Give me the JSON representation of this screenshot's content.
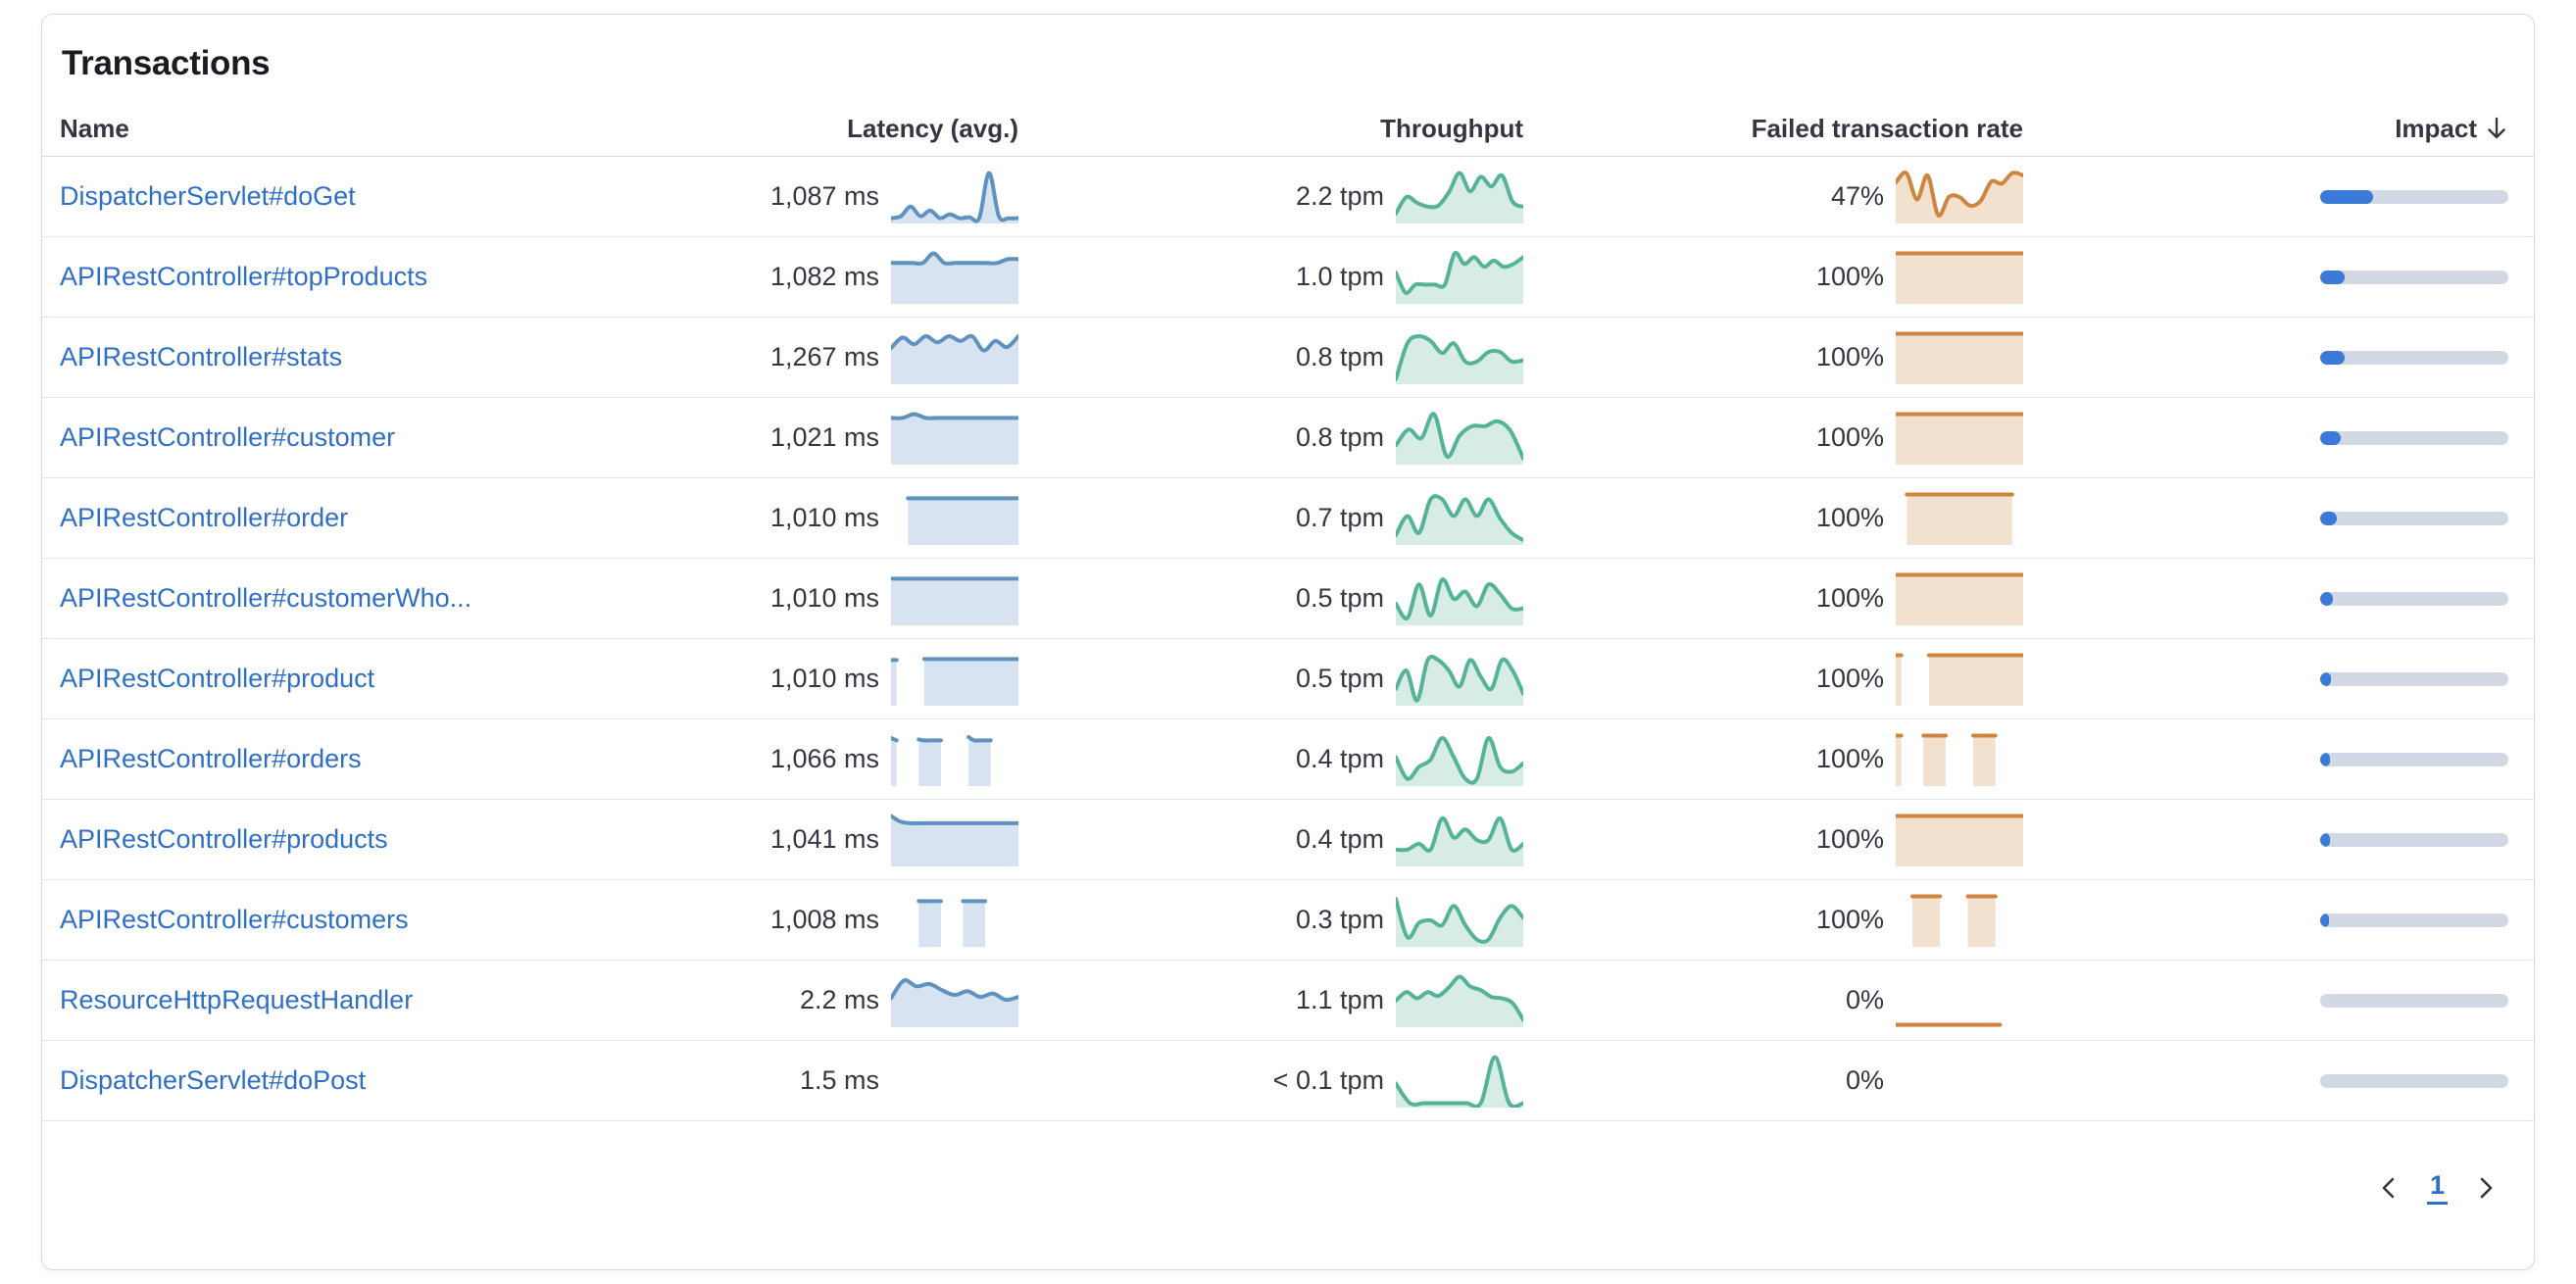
{
  "panel": {
    "title": "Transactions"
  },
  "colors": {
    "link": "#2f6fc6",
    "latency_line": "#6092C0",
    "latency_fill": "#D7E3F0",
    "throughput_line": "#54B399",
    "throughput_fill": "#D7ECE4",
    "failed_line": "#CE8540",
    "failed_fill": "#F3E1CF",
    "impact_fill": "#3B7AD8",
    "impact_track": "#D3D9E4",
    "text": "#343741"
  },
  "table": {
    "columns": [
      {
        "id": "name",
        "label": "Name",
        "align": "left"
      },
      {
        "id": "latency",
        "label": "Latency (avg.)",
        "align": "right"
      },
      {
        "id": "throughput",
        "label": "Throughput",
        "align": "right"
      },
      {
        "id": "failed",
        "label": "Failed transaction rate",
        "align": "right"
      },
      {
        "id": "impact",
        "label": "Impact",
        "align": "right",
        "sorted": "desc"
      }
    ],
    "rows": [
      {
        "name": "DispatcherServlet#doGet",
        "latency": "1,087 ms",
        "throughput": "2.2 tpm",
        "failed": "47%",
        "impact": 0.28,
        "latency_spark": [
          0.06,
          0.1,
          0.3,
          0.1,
          0.22,
          0.06,
          0.14,
          0.06,
          0.08,
          0.06,
          1.0,
          0.1,
          0.06,
          0.06
        ],
        "throughput_spark": [
          0.15,
          0.5,
          0.38,
          0.3,
          0.32,
          0.6,
          1.0,
          0.62,
          0.92,
          0.72,
          0.95,
          0.4,
          0.3
        ],
        "failed_spark": [
          0.8,
          1.0,
          0.45,
          0.95,
          0.12,
          0.5,
          0.5,
          0.32,
          0.42,
          0.82,
          0.78,
          1.0,
          0.95
        ]
      },
      {
        "name": "APIRestController#topProducts",
        "latency": "1,082 ms",
        "throughput": "1.0 tpm",
        "failed": "100%",
        "impact": 0.13,
        "latency_spark": [
          0.8,
          0.8,
          0.8,
          0.8,
          1.0,
          0.8,
          0.8,
          0.8,
          0.8,
          0.8,
          0.8,
          0.88,
          0.88
        ],
        "throughput_spark": [
          0.6,
          0.18,
          0.35,
          0.35,
          0.35,
          0.35,
          1.0,
          0.78,
          0.92,
          0.72,
          0.85,
          0.72,
          0.78,
          0.92
        ],
        "failed_spark": [
          1,
          1,
          1,
          1,
          1,
          1,
          1,
          1,
          1,
          1,
          1,
          1
        ]
      },
      {
        "name": "APIRestController#stats",
        "latency": "1,267 ms",
        "throughput": "0.8 tpm",
        "failed": "100%",
        "impact": 0.13,
        "latency_spark": [
          0.7,
          0.92,
          0.78,
          0.95,
          0.82,
          0.95,
          0.85,
          0.95,
          0.65,
          0.85,
          0.72,
          0.95
        ],
        "throughput_spark": [
          0.05,
          0.8,
          0.95,
          0.85,
          0.6,
          0.8,
          0.42,
          0.42,
          0.62,
          0.62,
          0.42,
          0.45
        ],
        "failed_spark": [
          1,
          1,
          1,
          1,
          1,
          1,
          1,
          1,
          1,
          1,
          1,
          1
        ]
      },
      {
        "name": "APIRestController#customer",
        "latency": "1,021 ms",
        "throughput": "0.8 tpm",
        "failed": "100%",
        "impact": 0.11,
        "latency_spark": [
          0.92,
          0.92,
          1.0,
          0.92,
          0.92,
          0.92,
          0.92,
          0.92,
          0.92,
          0.92,
          0.92,
          0.92
        ],
        "throughput_spark": [
          0.35,
          0.68,
          0.5,
          1.0,
          0.12,
          0.55,
          0.75,
          0.75,
          0.85,
          0.65,
          0.08
        ],
        "failed_spark": [
          1,
          1,
          1,
          1,
          1,
          1,
          1,
          1,
          1,
          1,
          1,
          1
        ]
      },
      {
        "name": "APIRestController#order",
        "latency": "1,010 ms",
        "throughput": "0.7 tpm",
        "failed": "100%",
        "impact": 0.09,
        "latency_spark": [
          null,
          null,
          0.92,
          0.92,
          0.92,
          0.92,
          0.92,
          0.92,
          0.92,
          0.92,
          0.92,
          0.92,
          0.92,
          0.92,
          0.92,
          0.92
        ],
        "throughput_spark": [
          0.15,
          0.55,
          0.2,
          0.9,
          0.9,
          0.55,
          0.9,
          0.55,
          0.9,
          0.5,
          0.2,
          0.05
        ],
        "failed_spark": [
          null,
          null,
          1,
          1,
          1,
          1,
          1,
          1,
          1,
          1,
          1,
          1,
          1,
          1,
          1,
          1,
          1,
          1,
          1,
          1,
          1,
          1,
          null,
          null
        ]
      },
      {
        "name": "APIRestController#customerWho...",
        "latency": "1,010 ms",
        "throughput": "0.5 tpm",
        "failed": "100%",
        "impact": 0.07,
        "latency_spark": [
          0.92,
          0.92,
          0.92,
          0.92,
          0.92,
          0.92,
          0.92,
          0.92,
          0.92,
          0.92,
          0.92,
          0.92,
          0.92,
          0.92
        ],
        "throughput_spark": [
          0.4,
          0.1,
          0.8,
          0.15,
          0.9,
          0.5,
          0.65,
          0.35,
          0.8,
          0.6,
          0.3,
          0.3
        ],
        "failed_spark": [
          1,
          1,
          1,
          1,
          1,
          1,
          1,
          1,
          1,
          1,
          1,
          1
        ]
      },
      {
        "name": "APIRestController#product",
        "latency": "1,010 ms",
        "throughput": "0.5 tpm",
        "failed": "100%",
        "impact": 0.055,
        "latency_spark": [
          0.9,
          0.9,
          null,
          null,
          null,
          null,
          0.92,
          0.92,
          0.92,
          0.92,
          0.92,
          0.92,
          0.92,
          0.92,
          0.92,
          0.92,
          0.92,
          0.92,
          0.92,
          0.92,
          0.92,
          0.92,
          0.92,
          0.92
        ],
        "throughput_spark": [
          0.3,
          0.68,
          0.06,
          0.9,
          0.9,
          0.68,
          0.35,
          0.9,
          0.55,
          0.3,
          0.9,
          0.68,
          0.2
        ],
        "failed_spark": [
          1,
          1,
          null,
          null,
          null,
          null,
          1,
          1,
          1,
          1,
          1,
          1,
          1,
          1,
          1,
          1,
          1,
          1,
          1,
          1,
          1,
          1,
          1,
          1
        ]
      },
      {
        "name": "APIRestController#orders",
        "latency": "1,066 ms",
        "throughput": "0.4 tpm",
        "failed": "100%",
        "impact": 0.05,
        "latency_spark": [
          0.95,
          0.9,
          null,
          null,
          null,
          0.92,
          0.9,
          0.9,
          0.9,
          0.9,
          null,
          null,
          null,
          null,
          0.97,
          0.9,
          0.9,
          0.9,
          0.9,
          null,
          null,
          null,
          null,
          null
        ],
        "throughput_spark": [
          0.55,
          0.1,
          0.35,
          0.5,
          0.95,
          0.55,
          0.1,
          0.1,
          0.95,
          0.35,
          0.25,
          0.42
        ],
        "failed_spark": [
          1,
          1,
          null,
          null,
          null,
          1,
          1,
          1,
          1,
          1,
          null,
          null,
          null,
          null,
          1,
          1,
          1,
          1,
          1,
          null,
          null,
          null,
          null,
          null
        ]
      },
      {
        "name": "APIRestController#products",
        "latency": "1,041 ms",
        "throughput": "0.4 tpm",
        "failed": "100%",
        "impact": 0.05,
        "latency_spark": [
          1.0,
          0.88,
          0.85,
          0.85,
          0.85,
          0.85,
          0.85,
          0.85,
          0.85,
          0.85,
          0.85,
          0.85,
          0.85,
          0.85
        ],
        "throughput_spark": [
          0.3,
          0.3,
          0.42,
          0.3,
          0.95,
          0.55,
          0.72,
          0.5,
          0.5,
          0.95,
          0.3,
          0.42
        ],
        "failed_spark": [
          1,
          1,
          1,
          1,
          1,
          1,
          1,
          1,
          1,
          1,
          1,
          1
        ]
      },
      {
        "name": "APIRestController#customers",
        "latency": "1,008 ms",
        "throughput": "0.3 tpm",
        "failed": "100%",
        "impact": 0.045,
        "latency_spark": [
          null,
          null,
          null,
          null,
          null,
          0.9,
          0.9,
          0.9,
          0.9,
          0.9,
          null,
          null,
          null,
          0.9,
          0.9,
          0.9,
          0.9,
          0.9,
          null,
          null,
          null,
          null,
          null,
          null
        ],
        "throughput_spark": [
          0.95,
          0.15,
          0.45,
          0.5,
          0.4,
          0.8,
          0.4,
          0.1,
          0.1,
          0.55,
          0.8,
          0.55
        ],
        "failed_spark": [
          null,
          null,
          null,
          1,
          1,
          1,
          1,
          1,
          1,
          null,
          null,
          null,
          null,
          1,
          1,
          1,
          1,
          1,
          1,
          null,
          null,
          null,
          null,
          null
        ]
      },
      {
        "name": "ResourceHttpRequestHandler",
        "latency": "2.2 ms",
        "throughput": "1.1 tpm",
        "failed": "0%",
        "impact": 0,
        "latency_spark": [
          0.55,
          0.92,
          0.8,
          0.85,
          0.72,
          0.62,
          0.7,
          0.58,
          0.65,
          0.52,
          0.58
        ],
        "throughput_spark": [
          0.5,
          0.68,
          0.55,
          0.68,
          0.6,
          0.78,
          1.0,
          0.8,
          0.72,
          0.58,
          0.55,
          0.45,
          0.1
        ],
        "failed_spark": [
          0,
          0,
          0,
          0,
          0,
          0,
          0,
          0,
          0,
          0,
          null,
          null
        ]
      },
      {
        "name": "DispatcherServlet#doPost",
        "latency": "1.5 ms",
        "throughput": "< 0.1 tpm",
        "failed": "0%",
        "impact": 0,
        "latency_spark": null,
        "throughput_spark": [
          0.45,
          0.04,
          0.04,
          0.04,
          0.04,
          0.04,
          0.04,
          1.0,
          0.04,
          0.04
        ],
        "failed_spark": null
      }
    ]
  },
  "pagination": {
    "current_page": "1"
  }
}
